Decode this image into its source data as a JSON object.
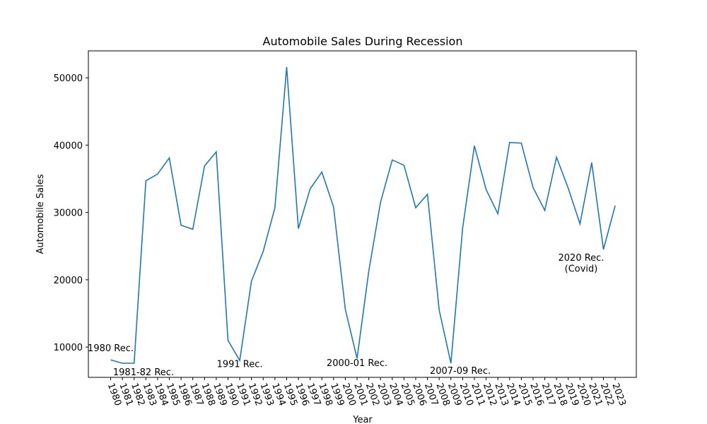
{
  "chart_data": {
    "type": "line",
    "title": "Automobile Sales During Recession",
    "xlabel": "Year",
    "ylabel": "Automobile Sales",
    "x": [
      1980,
      1981,
      1982,
      1983,
      1984,
      1985,
      1986,
      1987,
      1988,
      1989,
      1990,
      1991,
      1992,
      1993,
      1994,
      1995,
      1996,
      1997,
      1998,
      1999,
      2000,
      2001,
      2002,
      2003,
      2004,
      2005,
      2006,
      2007,
      2008,
      2009,
      2010,
      2011,
      2012,
      2013,
      2014,
      2015,
      2016,
      2017,
      2018,
      2019,
      2020,
      2021,
      2022,
      2023
    ],
    "yticks": [
      10000,
      20000,
      30000,
      40000,
      50000
    ],
    "ylim": [
      5500,
      54000
    ],
    "xlim": [
      1978.1,
      2024.8
    ],
    "grid": false,
    "color": "#1f77b4",
    "series": [
      {
        "values": [
          8100,
          7600,
          7600,
          34700,
          35700,
          38100,
          28100,
          27500,
          36900,
          39000,
          11000,
          8000,
          19800,
          24200,
          30700,
          51600,
          27600,
          33500,
          36000,
          30800,
          15600,
          8300,
          21300,
          31500,
          37800,
          37000,
          30700,
          32700,
          15500,
          7600,
          27700,
          39900,
          33400,
          29800,
          40400,
          40300,
          33700,
          30300,
          38200,
          33600,
          28300,
          37400,
          24500,
          31000
        ]
      }
    ],
    "annotations": [
      {
        "text": "1980 Rec.",
        "x": 1980,
        "y": 9400
      },
      {
        "text": "1981-82 Rec.",
        "x": 1982.8,
        "y": 5800
      },
      {
        "text": "1991 Rec.",
        "x": 1991,
        "y": 7000
      },
      {
        "text": "2000-01 Rec.",
        "x": 2001,
        "y": 7200
      },
      {
        "text": "2007-09 Rec.",
        "x": 2009.8,
        "y": 6000
      },
      {
        "text": "2020 Rec.",
        "x": 2020.1,
        "y": 22800
      },
      {
        "text": "(Covid)",
        "x": 2020.1,
        "y": 21200
      }
    ]
  }
}
